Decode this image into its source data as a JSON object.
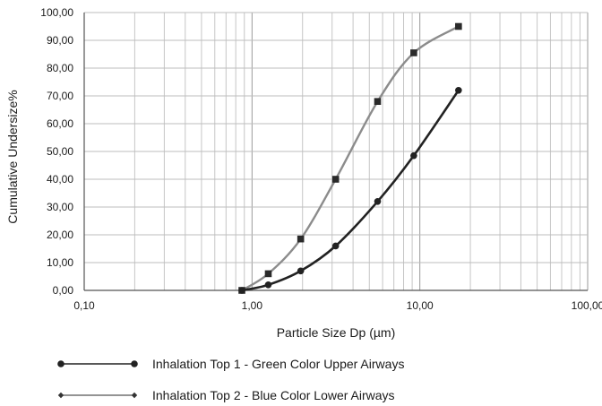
{
  "chart_data": {
    "type": "line",
    "title": "",
    "xlabel": "Particle Size Dp (µm)",
    "ylabel": "Cumulative Undersize%",
    "x_scale": "log",
    "xlim": [
      0.1,
      100
    ],
    "ylim": [
      0,
      100
    ],
    "x_ticks": [
      0.1,
      1,
      10,
      100
    ],
    "x_tick_labels": [
      "0,10",
      "1,00",
      "10,00",
      "100,00"
    ],
    "y_ticks": [
      0,
      10,
      20,
      30,
      40,
      50,
      60,
      70,
      80,
      90,
      100
    ],
    "y_tick_labels": [
      "0,00",
      "10,00",
      "20,00",
      "30,00",
      "40,00",
      "50,00",
      "60,00",
      "70,00",
      "80,00",
      "90,00",
      "100,00"
    ],
    "grid": "major and minor (log) vertical, major horizontal",
    "legend_position": "bottom-left",
    "series": [
      {
        "name": "Inhalation Top 1 - Green Color Upper Airways",
        "color": "#222222",
        "marker": "circle",
        "x": [
          0.87,
          1.25,
          1.95,
          3.15,
          5.6,
          9.2,
          17.0
        ],
        "y": [
          0.0,
          2.0,
          7.0,
          16.0,
          32.0,
          48.5,
          72.0
        ]
      },
      {
        "name": "Inhalation Top 2 - Blue Color Lower Airways",
        "color": "#8c8c8c",
        "marker": "square",
        "x": [
          0.87,
          1.25,
          1.95,
          3.15,
          5.6,
          9.2,
          17.0
        ],
        "y": [
          0.0,
          6.0,
          18.5,
          40.0,
          68.0,
          85.5,
          95.0
        ]
      }
    ]
  }
}
